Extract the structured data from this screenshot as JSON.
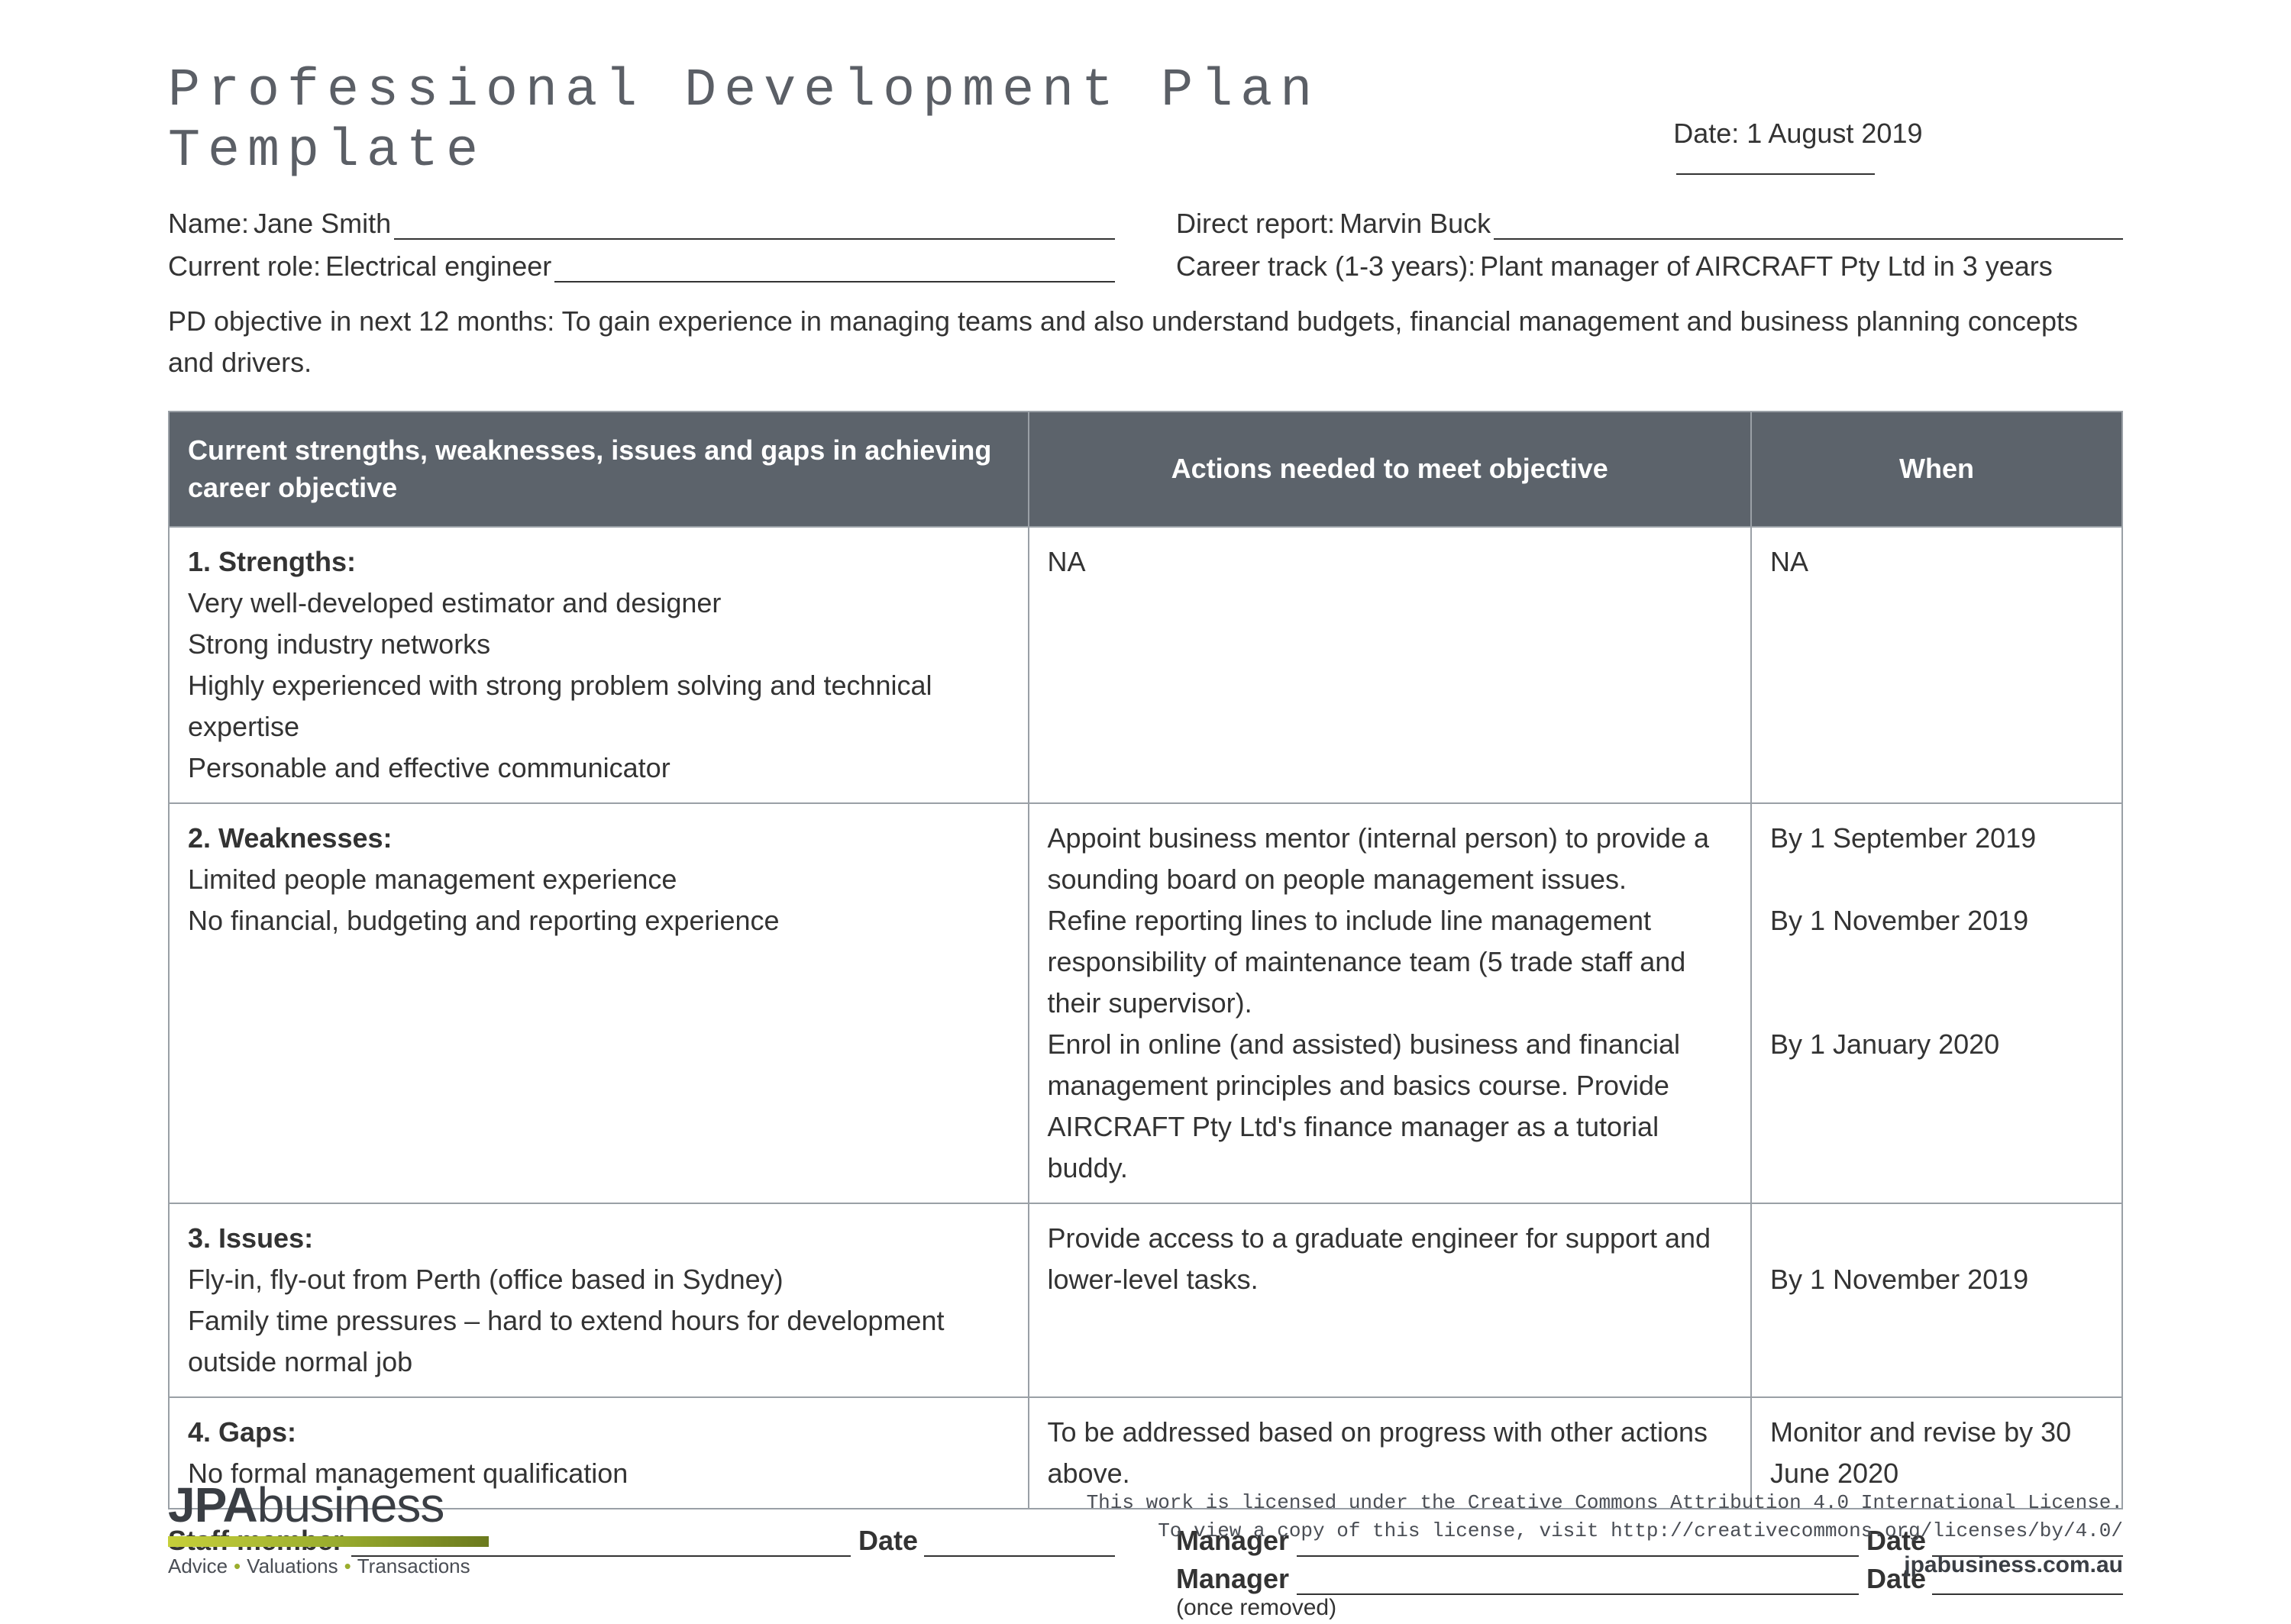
{
  "title": "Professional Development Plan Template",
  "date_label": "Date:",
  "date_value": "1 August 2019",
  "fields": {
    "name_label": "Name:",
    "name_value": "Jane Smith",
    "direct_report_label": "Direct report:",
    "direct_report_value": "Marvin Buck",
    "role_label": "Current role:",
    "role_value": "Electrical engineer",
    "career_track_label": "Career track (1-3 years):",
    "career_track_value": "Plant manager of AIRCRAFT Pty Ltd in 3 years"
  },
  "objective_label": "PD objective in next 12 months:",
  "objective_value": "To gain experience in managing teams and also understand budgets, financial management and business planning concepts and drivers.",
  "table": {
    "headers": {
      "col1": "Current strengths, weaknesses, issues and gaps in achieving career objective",
      "col2": "Actions needed to meet objective",
      "col3": "When"
    },
    "rows": [
      {
        "title": "1. Strengths:",
        "body": "Very well-developed estimator and designer\nStrong industry networks\nHighly experienced with strong problem solving and technical expertise\nPersonable and effective communicator",
        "actions": "NA",
        "when": "NA"
      },
      {
        "title": "2. Weaknesses:",
        "body": "Limited people management experience\nNo financial, budgeting and reporting experience",
        "actions": "Appoint business mentor (internal person) to provide a sounding board on people management issues.\nRefine reporting lines to include line management responsibility of maintenance team (5 trade staff and their supervisor).\nEnrol in online (and assisted) business and financial management principles and basics course. Provide AIRCRAFT Pty Ltd's finance manager as a tutorial buddy.",
        "when": "By 1 September 2019\n\nBy 1 November 2019\n\n\nBy 1 January 2020"
      },
      {
        "title": "3. Issues:",
        "body": "Fly-in, fly-out from Perth (office based in Sydney)\nFamily time pressures – hard to extend hours for development outside normal job",
        "actions": "Provide access to a graduate engineer for support and lower-level tasks.",
        "when": "\nBy 1 November 2019"
      },
      {
        "title": "4. Gaps:",
        "body": "No formal management qualification",
        "actions": "To be addressed based on progress with other actions above.",
        "when": "Monitor and revise by 30 June 2020"
      }
    ]
  },
  "signatures": {
    "staff_member": "Staff member",
    "date": "Date",
    "manager": "Manager",
    "once_removed": "(once removed)"
  },
  "footer": {
    "logo_prefix": "JPA",
    "logo_suffix": "business",
    "tagline_1": "Advice",
    "tagline_2": "Valuations",
    "tagline_3": "Transactions",
    "license_line1": "This work is licensed under the Creative Commons Attribution 4.0 International License.",
    "license_line2": "To view a copy of this license, visit http://creativecommons.org/licenses/by/4.0/",
    "site_url": "jpabusiness.com.au"
  },
  "colors": {
    "header_bg": "#5c636b",
    "header_text": "#ffffff",
    "border": "#9aa0a6",
    "text": "#333333",
    "title_text": "#5b5f66",
    "accent_bar_left": "#c6cf3a",
    "accent_bar_mid": "#9bae2e",
    "accent_bar_right": "#6b7a1e",
    "background": "#ffffff"
  }
}
